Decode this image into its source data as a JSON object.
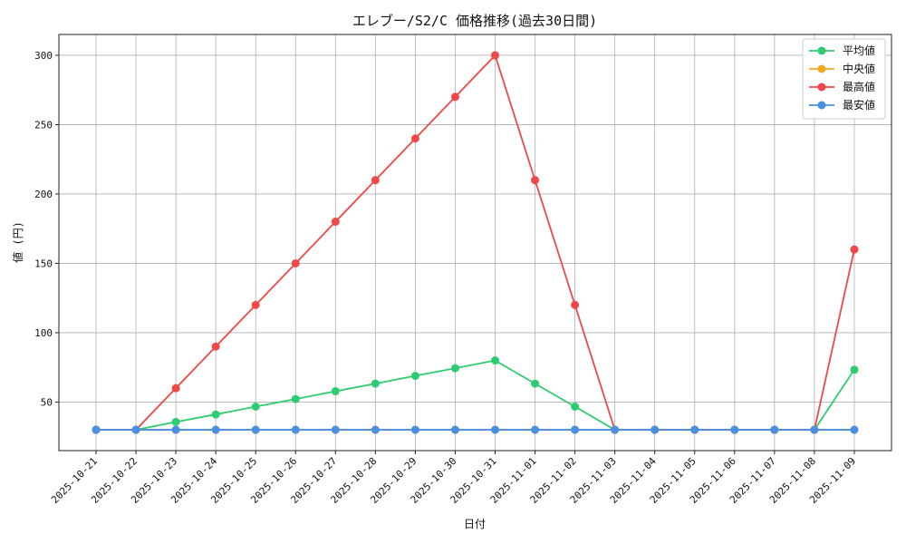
{
  "chart_data": {
    "type": "line",
    "title": "エレブー/S2/C 価格推移(過去30日間)",
    "xlabel": "日付",
    "ylabel": "値 (円)",
    "x": [
      "2025-10-21",
      "2025-10-22",
      "2025-10-23",
      "2025-10-24",
      "2025-10-25",
      "2025-10-26",
      "2025-10-27",
      "2025-10-28",
      "2025-10-29",
      "2025-10-30",
      "2025-10-31",
      "2025-11-01",
      "2025-11-02",
      "2025-11-03",
      "2025-11-04",
      "2025-11-05",
      "2025-11-06",
      "2025-11-07",
      "2025-11-08",
      "2025-11-09"
    ],
    "yticks": [
      50,
      100,
      150,
      200,
      250,
      300
    ],
    "ylim": [
      15,
      315
    ],
    "grid": true,
    "legend_position": "top-right",
    "series": [
      {
        "name": "平均値",
        "color": "#2ecc71",
        "values": [
          30,
          30,
          35.7,
          41.1,
          46.7,
          52.2,
          57.8,
          63.3,
          68.9,
          74.4,
          80,
          63.3,
          46.7,
          30,
          30,
          30,
          30,
          30,
          30,
          73.3
        ]
      },
      {
        "name": "中央値",
        "color": "#f5a623",
        "values": [
          30,
          30,
          30,
          30,
          30,
          30,
          30,
          30,
          30,
          30,
          30,
          30,
          30,
          30,
          30,
          30,
          30,
          30,
          30,
          30
        ]
      },
      {
        "name": "最高値",
        "color": "#f04747",
        "values": [
          30,
          30,
          60,
          90,
          120,
          150,
          180,
          210,
          240,
          270,
          300,
          210,
          120,
          30,
          30,
          30,
          30,
          30,
          30,
          160
        ]
      },
      {
        "name": "最安値",
        "color": "#4a90e2",
        "values": [
          30,
          30,
          30,
          30,
          30,
          30,
          30,
          30,
          30,
          30,
          30,
          30,
          30,
          30,
          30,
          30,
          30,
          30,
          30,
          30
        ]
      }
    ]
  }
}
